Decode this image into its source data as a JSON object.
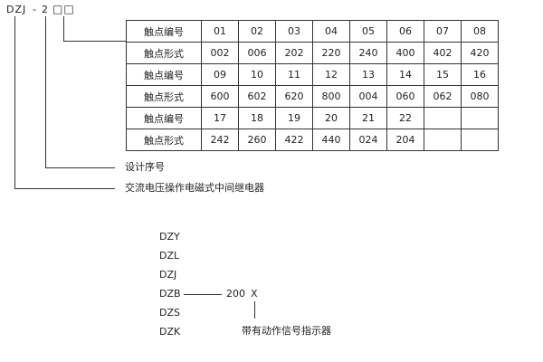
{
  "model": {
    "prefix": "DZJ",
    "dash": "-",
    "digit": "2",
    "boxes": "□□"
  },
  "table": {
    "rows": [
      [
        "触点编号",
        "01",
        "02",
        "03",
        "04",
        "05",
        "06",
        "07",
        "08"
      ],
      [
        "触点形式",
        "002",
        "006",
        "202",
        "220",
        "240",
        "400",
        "402",
        "420"
      ],
      [
        "触点编号",
        "09",
        "10",
        "11",
        "12",
        "13",
        "14",
        "15",
        "16"
      ],
      [
        "触点形式",
        "600",
        "602",
        "620",
        "800",
        "004",
        "060",
        "062",
        "080"
      ],
      [
        "触点编号",
        "17",
        "18",
        "19",
        "20",
        "21",
        "22",
        "",
        ""
      ],
      [
        "触点形式",
        "242",
        "260",
        "422",
        "440",
        "024",
        "204",
        "",
        ""
      ]
    ]
  },
  "labels": {
    "design_no": "设计序号",
    "relay_type": "交流电压操作电磁式中间继电器"
  },
  "series": {
    "items": [
      "DZY",
      "DZL",
      "DZJ",
      "DZB",
      "DZS",
      "DZK"
    ],
    "code": "200",
    "suffix": "X",
    "suffix_desc": "带有动作信号指示器"
  }
}
